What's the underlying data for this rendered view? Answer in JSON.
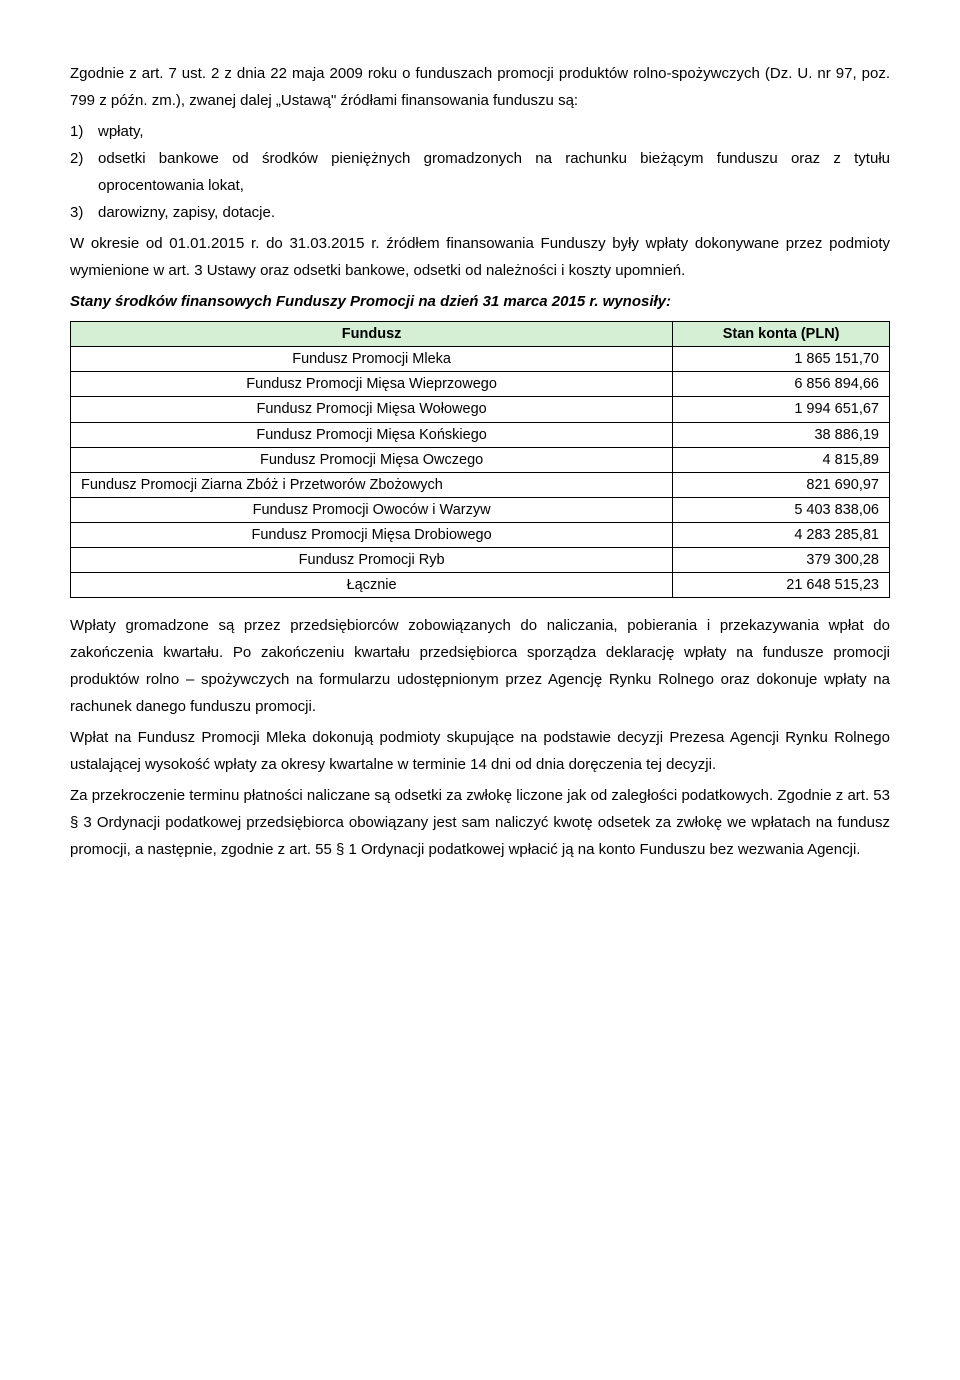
{
  "p1": "Zgodnie z art. 7 ust. 2 z dnia 22 maja 2009 roku o funduszach promocji produktów rolno-spożywczych (Dz. U. nr 97, poz. 799 z późn. zm.), zwanej dalej „Ustawą\" źródłami finansowania funduszu są:",
  "list": [
    {
      "n": "1)",
      "t": "wpłaty,"
    },
    {
      "n": "2)",
      "t": "odsetki bankowe od środków pieniężnych gromadzonych na rachunku bieżącym funduszu oraz z tytułu oprocentowania lokat,"
    },
    {
      "n": "3)",
      "t": "darowizny, zapisy, dotacje."
    }
  ],
  "p2": "W okresie od 01.01.2015 r. do 31.03.2015 r. źródłem finansowania Funduszy były wpłaty dokonywane przez podmioty wymienione w art. 3 Ustawy oraz odsetki bankowe, odsetki od należności i koszty upomnień.",
  "p3": "Stany środków finansowych Funduszy Promocji na dzień 31 marca 2015 r. wynosiły:",
  "table": {
    "header_bg": "#d5efd5",
    "columns": [
      "Fundusz",
      "Stan konta (PLN)"
    ],
    "rows": [
      [
        "Fundusz Promocji Mleka",
        "1 865 151,70"
      ],
      [
        "Fundusz Promocji Mięsa Wieprzowego",
        "6 856 894,66"
      ],
      [
        "Fundusz Promocji Mięsa Wołowego",
        "1 994 651,67"
      ],
      [
        "Fundusz Promocji Mięsa Końskiego",
        "38 886,19"
      ],
      [
        "Fundusz Promocji Mięsa Owczego",
        "4 815,89"
      ],
      [
        "Fundusz Promocji Ziarna Zbóż i Przetworów Zbożowych",
        "821 690,97"
      ],
      [
        "Fundusz Promocji Owoców i Warzyw",
        "5 403 838,06"
      ],
      [
        "Fundusz Promocji Mięsa Drobiowego",
        "4 283 285,81"
      ],
      [
        "Fundusz Promocji Ryb",
        "379 300,28"
      ]
    ],
    "total": [
      "Łącznie",
      "21 648 515,23"
    ]
  },
  "p4": "Wpłaty gromadzone są przez przedsiębiorców zobowiązanych do naliczania, pobierania i przekazywania wpłat do zakończenia kwartału. Po zakończeniu kwartału przedsiębiorca sporządza deklarację wpłaty na fundusze promocji produktów rolno – spożywczych na formularzu udostępnionym przez Agencję Rynku Rolnego oraz dokonuje wpłaty na rachunek danego funduszu promocji.",
  "p5": "Wpłat na Fundusz Promocji Mleka dokonują podmioty skupujące na podstawie decyzji Prezesa Agencji Rynku Rolnego ustalającej wysokość wpłaty za okresy kwartalne w terminie 14 dni od dnia doręczenia tej decyzji.",
  "p6": "Za przekroczenie terminu płatności naliczane są odsetki za zwłokę liczone jak od zaległości podatkowych. Zgodnie z art. 53 § 3 Ordynacji podatkowej przedsiębiorca obowiązany jest sam naliczyć kwotę odsetek za zwłokę we wpłatach na fundusz promocji, a następnie, zgodnie z art. 55 § 1 Ordynacji podatkowej wpłacić ją na konto Funduszu bez wezwania Agencji."
}
